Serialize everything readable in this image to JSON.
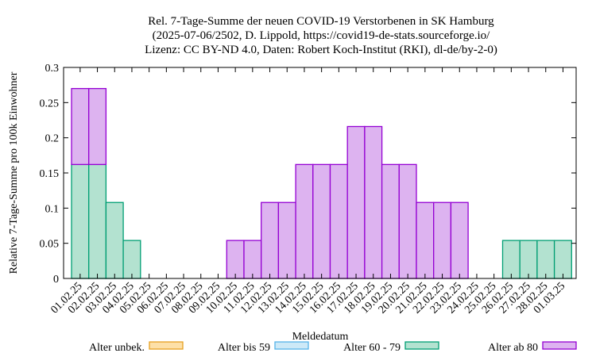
{
  "chart_data": {
    "type": "bar",
    "stacked": true,
    "title_lines": [
      "Rel. 7-Tage-Summe der neuen COVID-19 Verstorbenen in SK Hamburg",
      "(2025-07-06/2502, D. Lippold, https://covid19-de-stats.sourceforge.io/",
      "Lizenz: CC BY-ND 4.0, Daten: Robert Koch-Institut (RKI), dl-de/by-2-0)"
    ],
    "xlabel": "Meldedatum",
    "ylabel": "Relative 7-Tage-Summe pro 100k Einwohner",
    "ylim": [
      0,
      0.3
    ],
    "yticks": [
      "0",
      "0.05",
      "0.1",
      "0.15",
      "0.2",
      "0.25",
      "0.3"
    ],
    "categories": [
      "01.02.25",
      "02.02.25",
      "03.02.25",
      "04.02.25",
      "05.02.25",
      "06.02.25",
      "07.02.25",
      "08.02.25",
      "09.02.25",
      "10.02.25",
      "11.02.25",
      "12.02.25",
      "13.02.25",
      "14.02.25",
      "15.02.25",
      "16.02.25",
      "17.02.25",
      "18.02.25",
      "19.02.25",
      "20.02.25",
      "21.02.25",
      "22.02.25",
      "23.02.25",
      "24.02.25",
      "25.02.25",
      "26.02.25",
      "27.02.25",
      "28.02.25",
      "01.03.25"
    ],
    "series": [
      {
        "name": "Alter unbek.",
        "color": "#fde0a8",
        "edge": "#e6a020",
        "values": [
          0,
          0,
          0,
          0,
          0,
          0,
          0,
          0,
          0,
          0,
          0,
          0,
          0,
          0,
          0,
          0,
          0,
          0,
          0,
          0,
          0,
          0,
          0,
          0,
          0,
          0,
          0,
          0,
          0
        ]
      },
      {
        "name": "Alter bis 59",
        "color": "#cde9f7",
        "edge": "#56b4e9",
        "values": [
          0,
          0,
          0,
          0,
          0,
          0,
          0,
          0,
          0,
          0,
          0,
          0,
          0,
          0,
          0,
          0,
          0,
          0,
          0,
          0,
          0,
          0,
          0,
          0,
          0,
          0,
          0,
          0,
          0
        ]
      },
      {
        "name": "Alter 60 - 79",
        "color": "#b3e2d0",
        "edge": "#009e73",
        "values": [
          0.162,
          0.162,
          0.108,
          0.054,
          0,
          0,
          0,
          0,
          0,
          0,
          0,
          0,
          0,
          0,
          0,
          0,
          0,
          0,
          0,
          0,
          0,
          0,
          0,
          0,
          0,
          0.054,
          0.054,
          0.054,
          0.054
        ]
      },
      {
        "name": "Alter ab 80",
        "color": "#ddb3f0",
        "edge": "#9400d3",
        "values": [
          0.108,
          0.108,
          0,
          0,
          0,
          0,
          0,
          0,
          0,
          0.054,
          0.054,
          0.108,
          0.108,
          0.162,
          0.162,
          0.162,
          0.216,
          0.216,
          0.162,
          0.162,
          0.108,
          0.108,
          0.108,
          0,
          0,
          0,
          0,
          0,
          0
        ]
      }
    ],
    "legend_position": "bottom"
  }
}
